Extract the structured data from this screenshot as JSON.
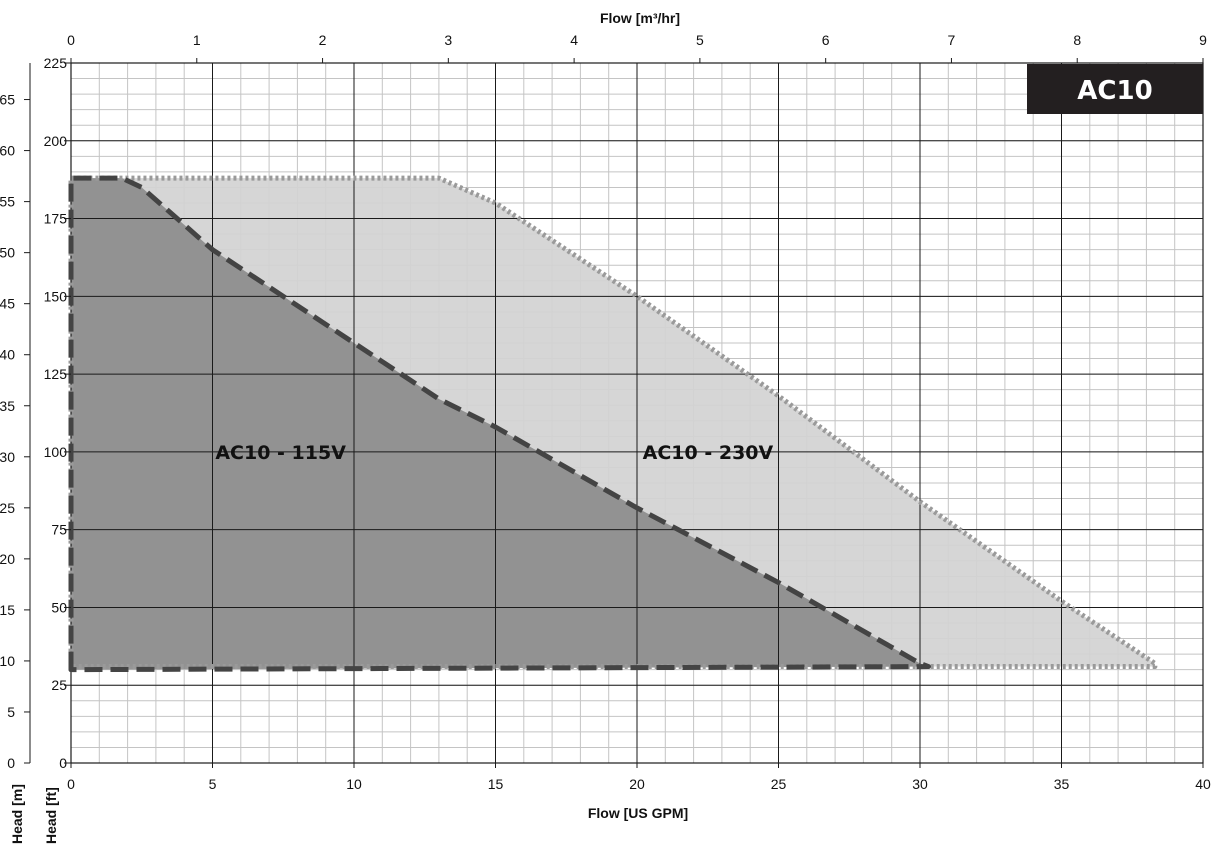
{
  "chart_data": {
    "type": "area",
    "badge": "AC10",
    "x_axis_bottom": {
      "label": "Flow [US GPM]",
      "range": [
        0,
        40
      ],
      "ticks": [
        0,
        5,
        10,
        15,
        20,
        25,
        30,
        35,
        40
      ],
      "minor_step": 1
    },
    "x_axis_top": {
      "label": "Flow [m³/hr]",
      "range": [
        0,
        9
      ],
      "ticks": [
        0,
        1,
        2,
        3,
        4,
        5,
        6,
        7,
        8,
        9
      ]
    },
    "y_axis_ft": {
      "label": "Head [ft]",
      "range": [
        0,
        225
      ],
      "ticks": [
        0,
        25,
        50,
        75,
        100,
        125,
        150,
        175,
        200,
        225
      ],
      "minor_step": 5
    },
    "y_axis_m": {
      "label": "Head [m]",
      "range": [
        0,
        68.58
      ],
      "visible_tick_labels": [
        "0",
        "5",
        "10",
        "15",
        "20",
        "25",
        "30",
        "35",
        "40",
        "45",
        "50",
        "55",
        "60",
        "65"
      ]
    },
    "series": [
      {
        "name": "AC10 - 230V",
        "fill": "#d3d3d3",
        "stroke": "#9a9a9a",
        "style": "dotted",
        "label_at": [
          20.2,
          100
        ],
        "points": [
          [
            0,
            30
          ],
          [
            0,
            188
          ],
          [
            13,
            188
          ],
          [
            15,
            180
          ],
          [
            20,
            150
          ],
          [
            25,
            118
          ],
          [
            30,
            84
          ],
          [
            35,
            52
          ],
          [
            38.3,
            32
          ],
          [
            38.3,
            31
          ],
          [
            0,
            31
          ]
        ]
      },
      {
        "name": "AC10 - 115V",
        "fill": "#8c8c8c",
        "stroke": "#444444",
        "style": "dashed",
        "label_at": [
          5.1,
          100
        ],
        "points": [
          [
            0,
            30
          ],
          [
            0,
            188
          ],
          [
            1.8,
            188
          ],
          [
            2.5,
            185
          ],
          [
            5,
            165
          ],
          [
            10,
            135
          ],
          [
            13,
            117
          ],
          [
            15,
            108
          ],
          [
            20,
            82
          ],
          [
            25,
            58
          ],
          [
            30,
            32
          ],
          [
            30.3,
            31
          ],
          [
            0,
            30
          ]
        ]
      }
    ]
  }
}
